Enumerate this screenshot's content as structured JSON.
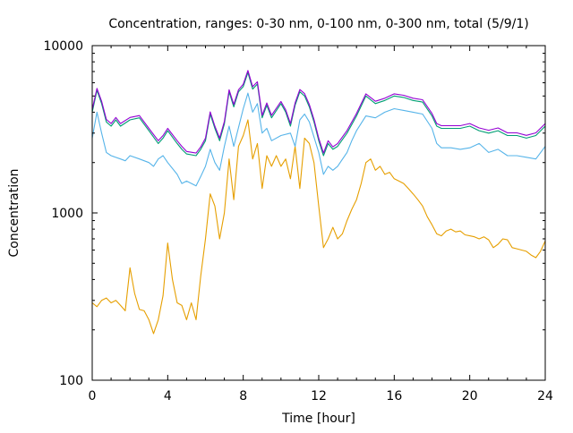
{
  "chart_data": {
    "type": "line",
    "title": "Concentration, ranges: 0-30 nm, 0-100 nm, 0-300 nm, total (5/9/1)",
    "xlabel": "Time [hour]",
    "ylabel": "Concentration",
    "xlim": [
      0,
      24
    ],
    "ylim": [
      100,
      10000
    ],
    "yscale": "log",
    "xticks": [
      "0",
      "4",
      "8",
      "12",
      "16",
      "20",
      "24"
    ],
    "xtick_values": [
      0,
      4,
      8,
      12,
      16,
      20,
      24
    ],
    "yticks": [
      "100",
      "1000",
      "10000"
    ],
    "ytick_values": [
      100,
      1000,
      10000
    ],
    "grid": false,
    "legend": "none",
    "series": [
      {
        "name": "total",
        "color": "#9400d3",
        "x": [
          0,
          0.25,
          0.5,
          0.75,
          1,
          1.25,
          1.5,
          2,
          2.5,
          3,
          3.5,
          3.75,
          4,
          4.5,
          4.75,
          5,
          5.5,
          5.75,
          6,
          6.25,
          6.5,
          6.75,
          7,
          7.25,
          7.5,
          7.75,
          8,
          8.25,
          8.5,
          8.75,
          9,
          9.25,
          9.5,
          10,
          10.25,
          10.5,
          10.75,
          11,
          11.25,
          11.5,
          11.75,
          12,
          12.25,
          12.5,
          12.75,
          13,
          13.5,
          14,
          14.5,
          15,
          15.5,
          16,
          16.5,
          17,
          17.5,
          18,
          18.25,
          18.5,
          19,
          19.5,
          20,
          20.5,
          21,
          21.5,
          22,
          22.5,
          23,
          23.5,
          24
        ],
        "values": [
          4150,
          5550,
          4650,
          3620,
          3420,
          3720,
          3420,
          3720,
          3820,
          3200,
          2700,
          2900,
          3200,
          2700,
          2500,
          2330,
          2280,
          2480,
          2800,
          4020,
          3300,
          2800,
          3520,
          5450,
          4450,
          5450,
          5880,
          7100,
          5680,
          6080,
          3830,
          4540,
          3830,
          4640,
          4130,
          3420,
          4540,
          5460,
          5160,
          4450,
          3620,
          2800,
          2280,
          2700,
          2480,
          2600,
          3110,
          3930,
          5150,
          4650,
          4850,
          5150,
          5050,
          4850,
          4750,
          3930,
          3420,
          3320,
          3320,
          3320,
          3420,
          3220,
          3120,
          3220,
          3010,
          3010,
          2910,
          3010,
          3420
        ]
      },
      {
        "name": "0-300 nm",
        "color": "#009e73",
        "x": [
          0,
          0.25,
          0.5,
          0.75,
          1,
          1.25,
          1.5,
          2,
          2.5,
          3,
          3.5,
          3.75,
          4,
          4.5,
          4.75,
          5,
          5.5,
          5.75,
          6,
          6.25,
          6.5,
          6.75,
          7,
          7.25,
          7.5,
          7.75,
          8,
          8.25,
          8.5,
          8.75,
          9,
          9.25,
          9.5,
          10,
          10.25,
          10.5,
          10.75,
          11,
          11.25,
          11.5,
          11.75,
          12,
          12.25,
          12.5,
          12.75,
          13,
          13.5,
          14,
          14.5,
          15,
          15.5,
          16,
          16.5,
          17,
          17.5,
          18,
          18.25,
          18.5,
          19,
          19.5,
          20,
          20.5,
          21,
          21.5,
          22,
          22.5,
          23,
          23.5,
          24
        ],
        "values": [
          4000,
          5400,
          4500,
          3500,
          3300,
          3600,
          3300,
          3600,
          3700,
          3100,
          2600,
          2800,
          3100,
          2600,
          2400,
          2250,
          2200,
          2400,
          2700,
          3900,
          3200,
          2700,
          3400,
          5300,
          4300,
          5300,
          5700,
          6900,
          5500,
          5900,
          3700,
          4400,
          3700,
          4500,
          4000,
          3300,
          4400,
          5300,
          5000,
          4300,
          3500,
          2700,
          2200,
          2600,
          2400,
          2500,
          3000,
          3800,
          5000,
          4500,
          4700,
          5000,
          4900,
          4700,
          4600,
          3800,
          3300,
          3200,
          3200,
          3200,
          3300,
          3100,
          3000,
          3100,
          2900,
          2900,
          2800,
          2900,
          3300
        ]
      },
      {
        "name": "0-100 nm",
        "color": "#56b4e9",
        "x": [
          0,
          0.25,
          0.5,
          0.75,
          1,
          1.5,
          1.75,
          2,
          2.5,
          3,
          3.25,
          3.5,
          3.75,
          4,
          4.5,
          4.75,
          5,
          5.5,
          5.75,
          6,
          6.25,
          6.5,
          6.75,
          7,
          7.25,
          7.5,
          8,
          8.25,
          8.5,
          8.75,
          9,
          9.25,
          9.5,
          10,
          10.5,
          10.75,
          11,
          11.25,
          11.5,
          12,
          12.25,
          12.5,
          12.75,
          13,
          13.5,
          13.75,
          14,
          14.5,
          15,
          15.5,
          16,
          16.5,
          17,
          17.5,
          18,
          18.25,
          18.5,
          19,
          19.5,
          20,
          20.5,
          21,
          21.5,
          22,
          22.5,
          23,
          23.5,
          24
        ],
        "values": [
          2800,
          4000,
          3000,
          2300,
          2200,
          2100,
          2050,
          2200,
          2100,
          2000,
          1900,
          2100,
          2200,
          2000,
          1700,
          1500,
          1550,
          1450,
          1650,
          1900,
          2400,
          2000,
          1800,
          2500,
          3300,
          2500,
          4200,
          5200,
          4000,
          4500,
          3000,
          3200,
          2700,
          2900,
          3000,
          2500,
          3600,
          3900,
          3500,
          2300,
          1700,
          1900,
          1800,
          1900,
          2300,
          2700,
          3100,
          3800,
          3700,
          4000,
          4200,
          4100,
          4000,
          3900,
          3200,
          2600,
          2450,
          2450,
          2400,
          2450,
          2600,
          2300,
          2400,
          2200,
          2200,
          2150,
          2100,
          2500
        ]
      },
      {
        "name": "0-30 nm",
        "color": "#e69f00",
        "x": [
          0,
          0.25,
          0.5,
          0.75,
          1,
          1.25,
          1.5,
          1.75,
          2,
          2.25,
          2.5,
          2.75,
          3,
          3.25,
          3.5,
          3.75,
          4,
          4.25,
          4.5,
          4.75,
          5,
          5.25,
          5.5,
          5.75,
          6,
          6.25,
          6.5,
          6.75,
          7,
          7.25,
          7.5,
          7.75,
          8,
          8.25,
          8.5,
          8.75,
          9,
          9.25,
          9.5,
          9.75,
          10,
          10.25,
          10.5,
          10.75,
          11,
          11.25,
          11.5,
          11.75,
          12,
          12.25,
          12.5,
          12.75,
          13,
          13.25,
          13.5,
          13.75,
          14,
          14.25,
          14.5,
          14.75,
          15,
          15.25,
          15.5,
          15.75,
          16,
          16.25,
          16.5,
          16.75,
          17,
          17.25,
          17.5,
          17.75,
          18,
          18.25,
          18.5,
          18.75,
          19,
          19.25,
          19.5,
          19.75,
          20,
          20.25,
          20.5,
          20.75,
          21,
          21.25,
          21.5,
          21.75,
          22,
          22.25,
          22.5,
          22.75,
          23,
          23.25,
          23.5,
          23.75,
          24
        ],
        "values": [
          290,
          275,
          300,
          310,
          290,
          300,
          280,
          260,
          470,
          330,
          265,
          260,
          230,
          190,
          230,
          320,
          660,
          400,
          290,
          280,
          230,
          290,
          230,
          420,
          700,
          1300,
          1100,
          700,
          1000,
          2100,
          1200,
          2500,
          2900,
          3600,
          2100,
          2600,
          1400,
          2200,
          1900,
          2200,
          1900,
          2100,
          1600,
          2500,
          1400,
          2800,
          2600,
          2000,
          1100,
          620,
          700,
          820,
          700,
          750,
          900,
          1050,
          1200,
          1500,
          2000,
          2100,
          1800,
          1900,
          1700,
          1750,
          1600,
          1550,
          1500,
          1400,
          1300,
          1200,
          1100,
          950,
          850,
          750,
          730,
          780,
          800,
          770,
          780,
          740,
          730,
          720,
          700,
          720,
          690,
          620,
          650,
          700,
          690,
          620,
          610,
          600,
          590,
          560,
          540,
          590,
          680
        ]
      }
    ]
  }
}
